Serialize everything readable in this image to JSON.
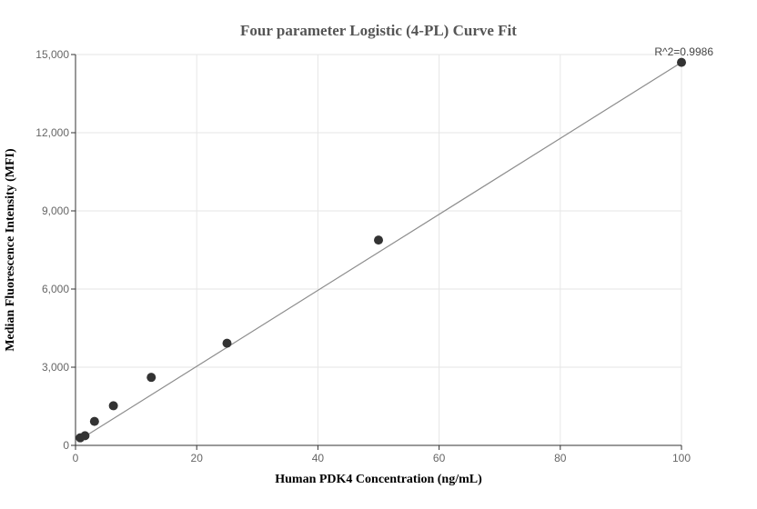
{
  "chart_data": {
    "type": "scatter",
    "title": "Four parameter Logistic (4-PL) Curve Fit",
    "xlabel": "Human PDK4 Concentration (ng/mL)",
    "ylabel": "Median Fluorescence Intensity (MFI)",
    "xlim": [
      0,
      100
    ],
    "ylim": [
      0,
      15000
    ],
    "x_ticks": [
      0,
      20,
      40,
      60,
      80,
      100
    ],
    "y_ticks": [
      0,
      3000,
      6000,
      9000,
      12000,
      15000
    ],
    "x_tick_labels": [
      "0",
      "20",
      "40",
      "60",
      "80",
      "100"
    ],
    "y_tick_labels": [
      "0",
      "3,000",
      "6,000",
      "9,000",
      "12,000",
      "15,000"
    ],
    "grid": true,
    "annotation": "R^2=0.9986",
    "series": [
      {
        "kind": "points",
        "x": [
          0.78,
          1.56,
          3.13,
          6.25,
          12.5,
          25,
          50,
          100
        ],
        "y": [
          290,
          370,
          920,
          1520,
          2610,
          3920,
          7880,
          14700
        ]
      },
      {
        "kind": "fit-line",
        "x": [
          0.78,
          100
        ],
        "y": [
          230,
          14700
        ]
      }
    ],
    "colors": {
      "points": "#333333",
      "fit_line": "#8c8c8c",
      "grid": "#e6e6e6",
      "axis": "#333333"
    }
  }
}
